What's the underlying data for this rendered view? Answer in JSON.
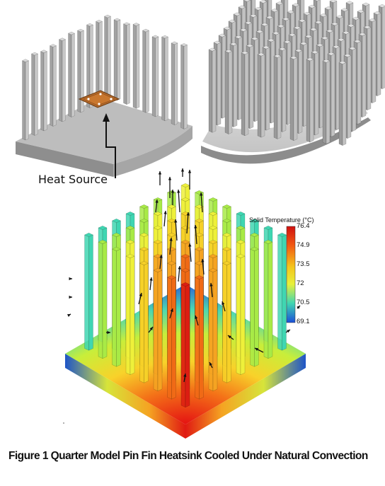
{
  "heat_source_label": "Heat Source",
  "colorbar": {
    "title": "Solid Temperature (°C)",
    "min": 69.1,
    "max": 76.4,
    "ticks": [
      "76.4",
      "74.9",
      "73.5",
      "72",
      "70.5",
      "69.1"
    ],
    "colors": [
      "#d01010",
      "#f25a12",
      "#f4c51c",
      "#e8f03a",
      "#3fd6b2",
      "#1b4fd8"
    ]
  },
  "caption": "Figure 1 Quarter Model Pin Fin Heatsink Cooled Under Natural Convection"
}
